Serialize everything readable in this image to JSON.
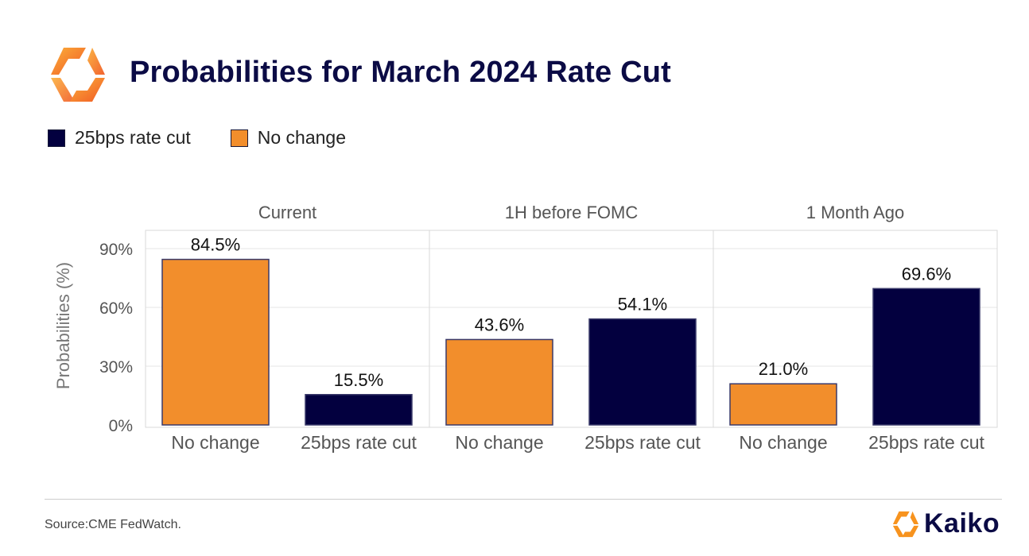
{
  "header": {
    "title": "Probabilities for March 2024 Rate Cut",
    "logo_icon": "kaiko-hexagon-logo-icon"
  },
  "colors": {
    "navy": "#03003f",
    "orange": "#f28e2c",
    "title": "#0b0b45",
    "bar_border": "#3a3a6a"
  },
  "legend": [
    {
      "label": "25bps rate cut",
      "color": "#03003f"
    },
    {
      "label": "No change",
      "color": "#f28e2c"
    }
  ],
  "chart_data": {
    "type": "bar",
    "title": "Probabilities for March 2024 Rate Cut",
    "ylabel": "Probabilities (%)",
    "xlabel": "",
    "ylim": [
      0,
      100
    ],
    "yticks": [
      0,
      30,
      60,
      90
    ],
    "ytick_labels": [
      "0%",
      "30%",
      "60%",
      "90%"
    ],
    "grid": true,
    "legend_position": "top-left",
    "panels": [
      {
        "title": "Current",
        "categories": [
          "No change",
          "25bps rate cut"
        ],
        "values": [
          84.5,
          15.5
        ],
        "value_labels": [
          "84.5%",
          "15.5%"
        ]
      },
      {
        "title": "1H before FOMC",
        "categories": [
          "No change",
          "25bps rate cut"
        ],
        "values": [
          43.6,
          54.1
        ],
        "value_labels": [
          "43.6%",
          "54.1%"
        ]
      },
      {
        "title": "1 Month Ago",
        "categories": [
          "No change",
          "25bps rate cut"
        ],
        "values": [
          21.0,
          69.6
        ],
        "value_labels": [
          "21.0%",
          "69.6%"
        ]
      }
    ]
  },
  "footer": {
    "source": "Source:CME FedWatch.",
    "brand_name": "Kaiko",
    "brand_icon": "kaiko-logo-icon"
  }
}
